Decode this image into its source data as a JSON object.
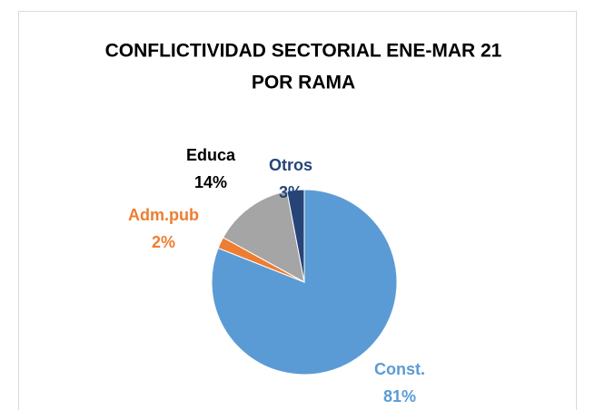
{
  "chart_data": {
    "type": "pie",
    "title": [
      "CONFLICTIVIDAD SECTORIAL ENE-MAR 21",
      "POR RAMA"
    ],
    "categories": [
      "Const.",
      "Adm.pub",
      "Educa",
      "Otros"
    ],
    "values": [
      81,
      2,
      14,
      3
    ],
    "value_labels": [
      "81%",
      "2%",
      "14%",
      "3%"
    ],
    "colors": [
      "#5b9bd5",
      "#ed7d31",
      "#a5a5a5",
      "#264478"
    ],
    "label_colors": [
      "#5b9bd5",
      "#ed7d31",
      "#000000",
      "#264478"
    ]
  }
}
